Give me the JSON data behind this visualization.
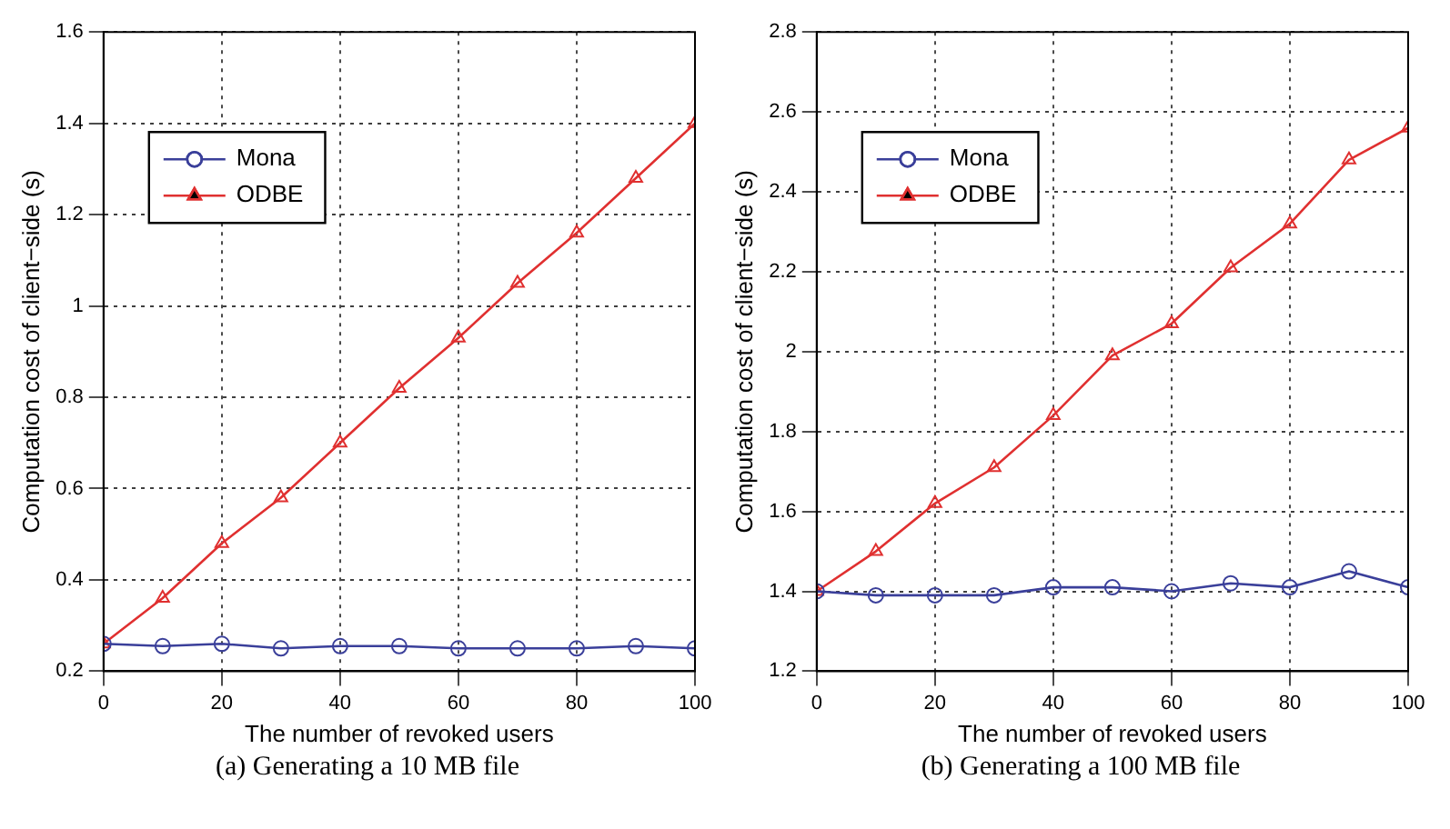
{
  "chart_data": [
    {
      "type": "line",
      "xlabel": "The number of revoked users",
      "ylabel": "Computation cost of client−side (s)",
      "x": [
        0,
        10,
        20,
        30,
        40,
        50,
        60,
        70,
        80,
        90,
        100
      ],
      "xlim": [
        0,
        100
      ],
      "xticks": [
        0,
        20,
        40,
        60,
        80,
        100
      ],
      "ylim": [
        0.2,
        1.6
      ],
      "yticks": [
        0.2,
        0.4,
        0.6,
        0.8,
        1,
        1.2,
        1.4,
        1.6
      ],
      "grid": true,
      "legend": "top left",
      "annotations": [
        "(a) Generating a 10 MB file"
      ],
      "series": [
        {
          "name": "Mona",
          "color": "#3a3f9a",
          "marker": "circle",
          "values": [
            0.26,
            0.255,
            0.26,
            0.25,
            0.255,
            0.255,
            0.25,
            0.25,
            0.25,
            0.255,
            0.25
          ]
        },
        {
          "name": "ODBE",
          "color": "#e03030",
          "marker": "triangle",
          "values": [
            0.26,
            0.36,
            0.48,
            0.58,
            0.7,
            0.82,
            0.93,
            1.05,
            1.16,
            1.28,
            1.4
          ]
        }
      ]
    },
    {
      "type": "line",
      "xlabel": "The number of revoked users",
      "ylabel": "Computation cost of client−side (s)",
      "x": [
        0,
        10,
        20,
        30,
        40,
        50,
        60,
        70,
        80,
        90,
        100
      ],
      "xlim": [
        0,
        100
      ],
      "xticks": [
        0,
        20,
        40,
        60,
        80,
        100
      ],
      "ylim": [
        1.2,
        2.8
      ],
      "yticks": [
        1.2,
        1.4,
        1.6,
        1.8,
        2,
        2.2,
        2.4,
        2.6,
        2.8
      ],
      "grid": true,
      "legend": "top left",
      "annotations": [
        "(b) Generating a 100 MB file"
      ],
      "series": [
        {
          "name": "Mona",
          "color": "#3a3f9a",
          "marker": "circle",
          "values": [
            1.4,
            1.39,
            1.39,
            1.39,
            1.41,
            1.41,
            1.4,
            1.42,
            1.41,
            1.45,
            1.41
          ]
        },
        {
          "name": "ODBE",
          "color": "#e03030",
          "marker": "triangle",
          "values": [
            1.4,
            1.5,
            1.62,
            1.71,
            1.84,
            1.99,
            2.07,
            2.21,
            2.32,
            2.48,
            2.56
          ]
        }
      ]
    }
  ]
}
